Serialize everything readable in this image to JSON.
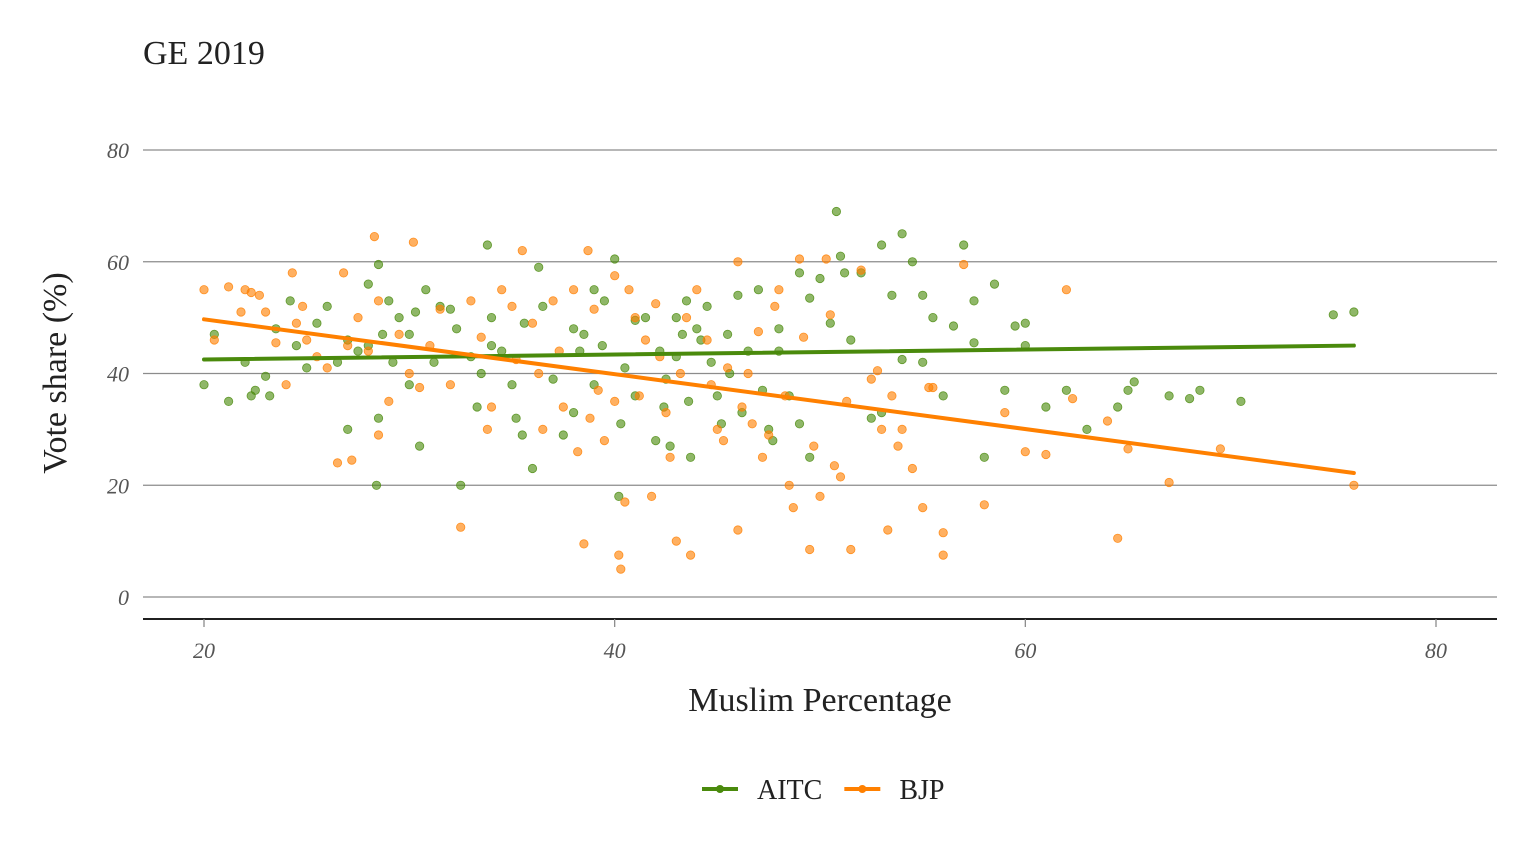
{
  "chart_data": {
    "type": "scatter",
    "title": "GE 2019",
    "xlabel": "Muslim Percentage",
    "ylabel": "Vote share (%)",
    "xlim": [
      17,
      84
    ],
    "ylim": [
      -4,
      88
    ],
    "xticks": [
      20,
      40,
      60,
      80
    ],
    "yticks": [
      0,
      20,
      40,
      60,
      80
    ],
    "grid": "horizontal major lines only",
    "legend_position": "bottom",
    "series": [
      {
        "name": "AITC",
        "color": "#4a8a0c",
        "trend": {
          "x": [
            20,
            76
          ],
          "y": [
            42.5,
            45.0
          ]
        },
        "points": [
          [
            20,
            38
          ],
          [
            20.5,
            47
          ],
          [
            21.2,
            35
          ],
          [
            22,
            42
          ],
          [
            22.3,
            36
          ],
          [
            22.5,
            37
          ],
          [
            23,
            39.5
          ],
          [
            23.2,
            36
          ],
          [
            23.5,
            48
          ],
          [
            24.2,
            53
          ],
          [
            24.5,
            45
          ],
          [
            25,
            41
          ],
          [
            25.5,
            49
          ],
          [
            26,
            52
          ],
          [
            26.5,
            42
          ],
          [
            27,
            46
          ],
          [
            27,
            30
          ],
          [
            27.5,
            44
          ],
          [
            28,
            56
          ],
          [
            28,
            45
          ],
          [
            28.4,
            20
          ],
          [
            28.5,
            59.5
          ],
          [
            28.5,
            32
          ],
          [
            28.7,
            47
          ],
          [
            29,
            53
          ],
          [
            29.2,
            42
          ],
          [
            29.5,
            50
          ],
          [
            30,
            47
          ],
          [
            30,
            38
          ],
          [
            30.3,
            51
          ],
          [
            30.5,
            27
          ],
          [
            30.8,
            55
          ],
          [
            31.2,
            42
          ],
          [
            31.5,
            52
          ],
          [
            32,
            51.5
          ],
          [
            32.3,
            48
          ],
          [
            32.5,
            20
          ],
          [
            33,
            43
          ],
          [
            33.3,
            34
          ],
          [
            33.5,
            40
          ],
          [
            33.8,
            63
          ],
          [
            34,
            50
          ],
          [
            34,
            45
          ],
          [
            34.5,
            44
          ],
          [
            35,
            38
          ],
          [
            35.2,
            32
          ],
          [
            35.5,
            29
          ],
          [
            35.6,
            49
          ],
          [
            36,
            23
          ],
          [
            36.3,
            59
          ],
          [
            36.5,
            52
          ],
          [
            37,
            39
          ],
          [
            37.5,
            29
          ],
          [
            38,
            48
          ],
          [
            38,
            33
          ],
          [
            38.3,
            44
          ],
          [
            38.5,
            47
          ],
          [
            39,
            55
          ],
          [
            39,
            38
          ],
          [
            39.4,
            45
          ],
          [
            39.5,
            53
          ],
          [
            40,
            60.5
          ],
          [
            40.2,
            18
          ],
          [
            40.3,
            31
          ],
          [
            40.5,
            41
          ],
          [
            41,
            49.5
          ],
          [
            41,
            36
          ],
          [
            41.5,
            50
          ],
          [
            42,
            28
          ],
          [
            42.2,
            44
          ],
          [
            42.4,
            34
          ],
          [
            42.5,
            39
          ],
          [
            42.7,
            27
          ],
          [
            43,
            50
          ],
          [
            43,
            43
          ],
          [
            43.3,
            47
          ],
          [
            43.5,
            53
          ],
          [
            43.6,
            35
          ],
          [
            43.7,
            25
          ],
          [
            44,
            48
          ],
          [
            44.2,
            46
          ],
          [
            44.5,
            52
          ],
          [
            44.7,
            42
          ],
          [
            45,
            36
          ],
          [
            45.2,
            31
          ],
          [
            45.5,
            47
          ],
          [
            45.6,
            40
          ],
          [
            46,
            54
          ],
          [
            46.2,
            33
          ],
          [
            46.5,
            44
          ],
          [
            47,
            55
          ],
          [
            47.2,
            37
          ],
          [
            47.5,
            30
          ],
          [
            47.7,
            28
          ],
          [
            48,
            48
          ],
          [
            48,
            44
          ],
          [
            48.5,
            36
          ],
          [
            49,
            58
          ],
          [
            49,
            31
          ],
          [
            49.5,
            53.5
          ],
          [
            49.5,
            25
          ],
          [
            50,
            57
          ],
          [
            50.5,
            49
          ],
          [
            50.8,
            69
          ],
          [
            51,
            61
          ],
          [
            51.2,
            58
          ],
          [
            51.5,
            46
          ],
          [
            52,
            58
          ],
          [
            52.5,
            32
          ],
          [
            53,
            33
          ],
          [
            53,
            63
          ],
          [
            53.5,
            54
          ],
          [
            54,
            65
          ],
          [
            54,
            42.5
          ],
          [
            54.5,
            60
          ],
          [
            55,
            54
          ],
          [
            55,
            42
          ],
          [
            55.5,
            50
          ],
          [
            56,
            36
          ],
          [
            56.5,
            48.5
          ],
          [
            57,
            63
          ],
          [
            57.5,
            53
          ],
          [
            57.5,
            45.5
          ],
          [
            58,
            25
          ],
          [
            58.5,
            56
          ],
          [
            59,
            37
          ],
          [
            59.5,
            48.5
          ],
          [
            60,
            49
          ],
          [
            60,
            45
          ],
          [
            61,
            34
          ],
          [
            62,
            37
          ],
          [
            63,
            30
          ],
          [
            64.5,
            34
          ],
          [
            65,
            37
          ],
          [
            65.3,
            38.5
          ],
          [
            67,
            36
          ],
          [
            68,
            35.5
          ],
          [
            68.5,
            37
          ],
          [
            70.5,
            35
          ],
          [
            75,
            50.5
          ],
          [
            76,
            51
          ]
        ]
      },
      {
        "name": "BJP",
        "color": "#ff8000",
        "trend": {
          "x": [
            20,
            76
          ],
          "y": [
            49.7,
            22.2
          ]
        },
        "points": [
          [
            20,
            55
          ],
          [
            20.5,
            46
          ],
          [
            21.2,
            55.5
          ],
          [
            21.8,
            51
          ],
          [
            22,
            55
          ],
          [
            22.3,
            54.5
          ],
          [
            22.7,
            54
          ],
          [
            23,
            51
          ],
          [
            23.5,
            45.5
          ],
          [
            24,
            38
          ],
          [
            24.3,
            58
          ],
          [
            24.5,
            49
          ],
          [
            24.8,
            52
          ],
          [
            25,
            46
          ],
          [
            25.5,
            43
          ],
          [
            26,
            41
          ],
          [
            26.5,
            24
          ],
          [
            26.8,
            58
          ],
          [
            27,
            45
          ],
          [
            27.2,
            24.5
          ],
          [
            27.5,
            50
          ],
          [
            28,
            44
          ],
          [
            28.3,
            64.5
          ],
          [
            28.5,
            53
          ],
          [
            28.5,
            29
          ],
          [
            29,
            35
          ],
          [
            29.5,
            47
          ],
          [
            30,
            40
          ],
          [
            30.2,
            63.5
          ],
          [
            30.5,
            37.5
          ],
          [
            31,
            45
          ],
          [
            31.5,
            51.5
          ],
          [
            32,
            38
          ],
          [
            32.5,
            12.5
          ],
          [
            33,
            53
          ],
          [
            33.5,
            46.5
          ],
          [
            33.8,
            30
          ],
          [
            34,
            34
          ],
          [
            34.5,
            55
          ],
          [
            35,
            52
          ],
          [
            35.2,
            42.5
          ],
          [
            35.5,
            62
          ],
          [
            36,
            49
          ],
          [
            36.3,
            40
          ],
          [
            36.5,
            30
          ],
          [
            37,
            53
          ],
          [
            37.3,
            44
          ],
          [
            37.5,
            34
          ],
          [
            38,
            55
          ],
          [
            38.2,
            26
          ],
          [
            38.5,
            9.5
          ],
          [
            38.7,
            62
          ],
          [
            38.8,
            32
          ],
          [
            39,
            51.5
          ],
          [
            39.2,
            37
          ],
          [
            39.5,
            28
          ],
          [
            40,
            57.5
          ],
          [
            40,
            35
          ],
          [
            40.2,
            7.5
          ],
          [
            40.3,
            5
          ],
          [
            40.5,
            17
          ],
          [
            40.7,
            55
          ],
          [
            41,
            50
          ],
          [
            41.2,
            36
          ],
          [
            41.5,
            46
          ],
          [
            41.8,
            18
          ],
          [
            42,
            52.5
          ],
          [
            42.2,
            43
          ],
          [
            42.5,
            33
          ],
          [
            42.7,
            25
          ],
          [
            43,
            10
          ],
          [
            43.2,
            40
          ],
          [
            43.5,
            50
          ],
          [
            43.7,
            7.5
          ],
          [
            44,
            55
          ],
          [
            44.5,
            46
          ],
          [
            44.7,
            38
          ],
          [
            45,
            30
          ],
          [
            45.3,
            28
          ],
          [
            45.5,
            41
          ],
          [
            46,
            60
          ],
          [
            46,
            12
          ],
          [
            46.2,
            34
          ],
          [
            46.5,
            40
          ],
          [
            46.7,
            31
          ],
          [
            47,
            47.5
          ],
          [
            47.2,
            25
          ],
          [
            47.5,
            29
          ],
          [
            47.8,
            52
          ],
          [
            48,
            55
          ],
          [
            48.3,
            36
          ],
          [
            48.5,
            20
          ],
          [
            48.7,
            16
          ],
          [
            49,
            60.5
          ],
          [
            49.2,
            46.5
          ],
          [
            49.5,
            8.5
          ],
          [
            49.7,
            27
          ],
          [
            50,
            18
          ],
          [
            50.3,
            60.5
          ],
          [
            50.5,
            50.5
          ],
          [
            50.7,
            23.5
          ],
          [
            51,
            21.5
          ],
          [
            51.3,
            35
          ],
          [
            51.5,
            8.5
          ],
          [
            52,
            58.5
          ],
          [
            52.5,
            39
          ],
          [
            52.8,
            40.5
          ],
          [
            53,
            30
          ],
          [
            53.3,
            12
          ],
          [
            53.5,
            36
          ],
          [
            53.8,
            27
          ],
          [
            54,
            30
          ],
          [
            54.5,
            23
          ],
          [
            55,
            16
          ],
          [
            55.3,
            37.5
          ],
          [
            55.5,
            37.5
          ],
          [
            56,
            11.5
          ],
          [
            56,
            7.5
          ],
          [
            57,
            59.5
          ],
          [
            58,
            16.5
          ],
          [
            59,
            33
          ],
          [
            60,
            26
          ],
          [
            61,
            25.5
          ],
          [
            62,
            55
          ],
          [
            62.3,
            35.5
          ],
          [
            64,
            31.5
          ],
          [
            64.5,
            10.5
          ],
          [
            65,
            26.5
          ],
          [
            67,
            20.5
          ],
          [
            69.5,
            26.5
          ],
          [
            76,
            20
          ]
        ]
      }
    ]
  }
}
